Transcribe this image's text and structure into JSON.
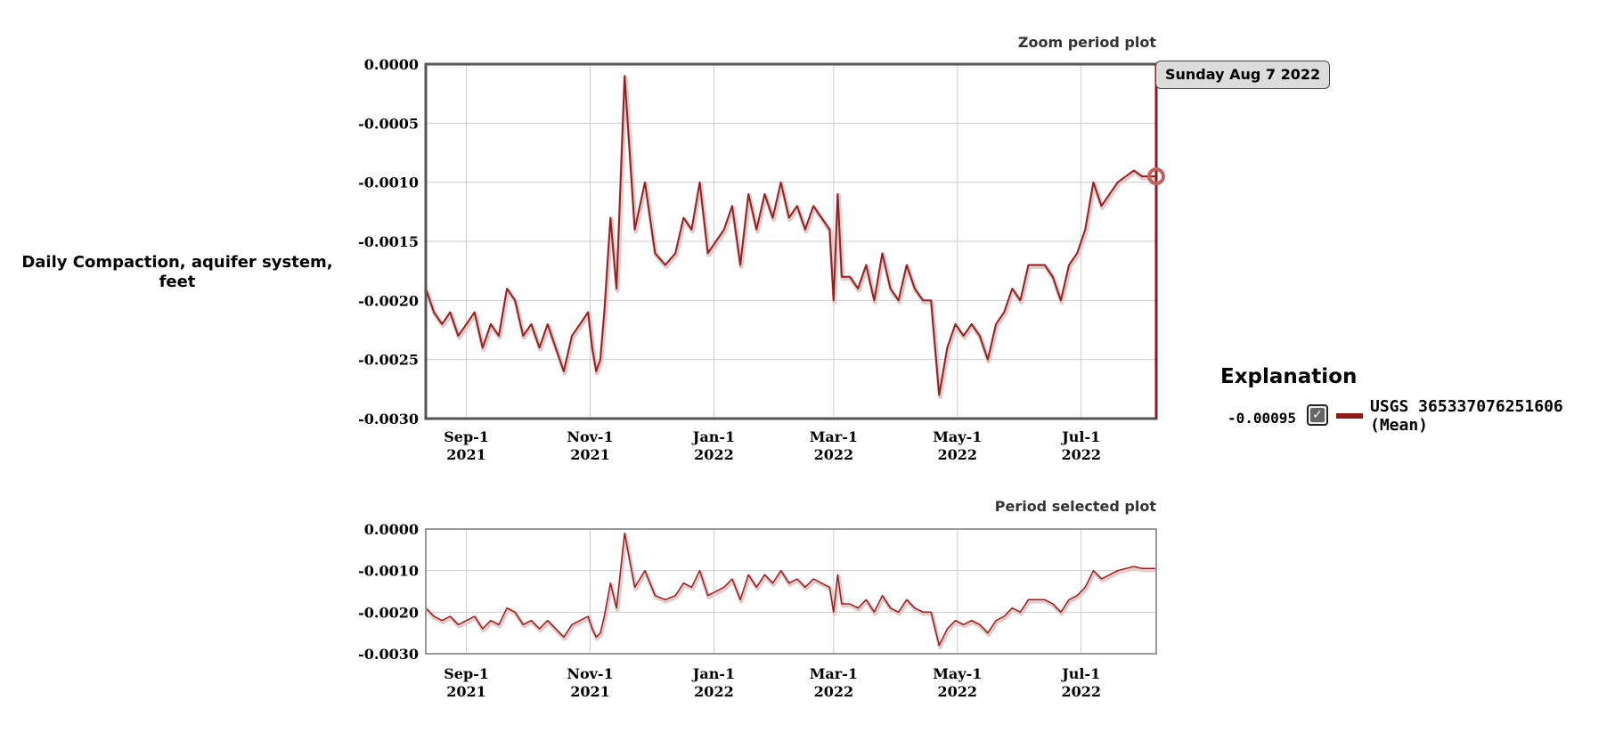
{
  "chart_data": [
    {
      "type": "line",
      "title": "Zoom period plot",
      "ylabel": "Daily Compaction, aquifer system, feet",
      "ylim": [
        -0.003,
        0.0
      ],
      "xlim": [
        "2021-08-12",
        "2022-08-07"
      ],
      "yticks": [
        "0.0000",
        "-0.0005",
        "-0.0010",
        "-0.0015",
        "-0.0020",
        "-0.0025",
        "-0.0030"
      ],
      "grid": true,
      "series": [
        {
          "name": "USGS 365337076251606 (Mean)",
          "color": "#8b2424",
          "x": [
            "2021-08-12",
            "2021-08-16",
            "2021-08-20",
            "2021-08-24",
            "2021-08-28",
            "2021-09-01",
            "2021-09-05",
            "2021-09-09",
            "2021-09-13",
            "2021-09-17",
            "2021-09-21",
            "2021-09-25",
            "2021-09-29",
            "2021-10-03",
            "2021-10-07",
            "2021-10-11",
            "2021-10-15",
            "2021-10-19",
            "2021-10-23",
            "2021-10-27",
            "2021-10-31",
            "2021-11-02",
            "2021-11-04",
            "2021-11-06",
            "2021-11-08",
            "2021-11-11",
            "2021-11-14",
            "2021-11-18",
            "2021-11-23",
            "2021-11-28",
            "2021-12-03",
            "2021-12-08",
            "2021-12-13",
            "2021-12-17",
            "2021-12-21",
            "2021-12-25",
            "2021-12-29",
            "2022-01-02",
            "2022-01-06",
            "2022-01-10",
            "2022-01-14",
            "2022-01-18",
            "2022-01-22",
            "2022-01-26",
            "2022-01-30",
            "2022-02-03",
            "2022-02-07",
            "2022-02-11",
            "2022-02-15",
            "2022-02-19",
            "2022-02-23",
            "2022-02-27",
            "2022-03-01",
            "2022-03-03",
            "2022-03-05",
            "2022-03-09",
            "2022-03-13",
            "2022-03-17",
            "2022-03-21",
            "2022-03-25",
            "2022-03-29",
            "2022-04-02",
            "2022-04-06",
            "2022-04-10",
            "2022-04-14",
            "2022-04-18",
            "2022-04-22",
            "2022-04-26",
            "2022-04-30",
            "2022-05-04",
            "2022-05-08",
            "2022-05-12",
            "2022-05-16",
            "2022-05-20",
            "2022-05-24",
            "2022-05-28",
            "2022-06-01",
            "2022-06-05",
            "2022-06-09",
            "2022-06-13",
            "2022-06-17",
            "2022-06-21",
            "2022-06-25",
            "2022-06-29",
            "2022-07-03",
            "2022-07-07",
            "2022-07-11",
            "2022-07-15",
            "2022-07-19",
            "2022-07-23",
            "2022-07-27",
            "2022-07-31",
            "2022-08-04",
            "2022-08-07"
          ],
          "values": [
            -0.0019,
            -0.0021,
            -0.0022,
            -0.0021,
            -0.0023,
            -0.0022,
            -0.0021,
            -0.0024,
            -0.0022,
            -0.0023,
            -0.0019,
            -0.002,
            -0.0023,
            -0.0022,
            -0.0024,
            -0.0022,
            -0.0024,
            -0.0026,
            -0.0023,
            -0.0022,
            -0.0021,
            -0.0024,
            -0.0026,
            -0.0025,
            -0.0021,
            -0.0013,
            -0.0019,
            -0.0001,
            -0.0014,
            -0.001,
            -0.0016,
            -0.0017,
            -0.0016,
            -0.0013,
            -0.0014,
            -0.001,
            -0.0016,
            -0.0015,
            -0.0014,
            -0.0012,
            -0.0017,
            -0.0011,
            -0.0014,
            -0.0011,
            -0.0013,
            -0.001,
            -0.0013,
            -0.0012,
            -0.0014,
            -0.0012,
            -0.0013,
            -0.0014,
            -0.002,
            -0.0011,
            -0.0018,
            -0.0018,
            -0.0019,
            -0.0017,
            -0.002,
            -0.0016,
            -0.0019,
            -0.002,
            -0.0017,
            -0.0019,
            -0.002,
            -0.002,
            -0.0028,
            -0.0024,
            -0.0022,
            -0.0023,
            -0.0022,
            -0.0023,
            -0.0025,
            -0.0022,
            -0.0021,
            -0.0019,
            -0.002,
            -0.0017,
            -0.0017,
            -0.0017,
            -0.0018,
            -0.002,
            -0.0017,
            -0.0016,
            -0.0014,
            -0.001,
            -0.0012,
            -0.0011,
            -0.001,
            -0.00095,
            -0.0009,
            -0.00095,
            -0.00095,
            -0.00095
          ]
        }
      ],
      "tooltip": "Sunday Aug 7 2022",
      "xticks": [
        {
          "date": "2021-09-01",
          "line1": "Sep-1",
          "line2": "2021"
        },
        {
          "date": "2021-11-01",
          "line1": "Nov-1",
          "line2": "2021"
        },
        {
          "date": "2022-01-01",
          "line1": "Jan-1",
          "line2": "2022"
        },
        {
          "date": "2022-03-01",
          "line1": "Mar-1",
          "line2": "2022"
        },
        {
          "date": "2022-05-01",
          "line1": "May-1",
          "line2": "2022"
        },
        {
          "date": "2022-07-01",
          "line1": "Jul-1",
          "line2": "2022"
        }
      ]
    },
    {
      "type": "line",
      "title": "Period selected plot",
      "ylim": [
        -0.003,
        0.0
      ],
      "xlim": [
        "2021-08-12",
        "2022-08-07"
      ],
      "yticks": [
        "0.0000",
        "-0.0010",
        "-0.0020",
        "-0.0030"
      ],
      "grid": true,
      "series_ref": "same as Zoom period plot",
      "xticks": [
        {
          "date": "2021-09-01",
          "line1": "Sep-1",
          "line2": "2021"
        },
        {
          "date": "2021-11-01",
          "line1": "Nov-1",
          "line2": "2021"
        },
        {
          "date": "2022-01-01",
          "line1": "Jan-1",
          "line2": "2022"
        },
        {
          "date": "2022-03-01",
          "line1": "Mar-1",
          "line2": "2022"
        },
        {
          "date": "2022-05-01",
          "line1": "May-1",
          "line2": "2022"
        },
        {
          "date": "2022-07-01",
          "line1": "Jul-1",
          "line2": "2022"
        }
      ]
    }
  ],
  "legend": {
    "title": "Explanation",
    "value": "-0.00095",
    "checked": true,
    "series_name_line1": "USGS 365337076251606",
    "series_name_line2": "(Mean)"
  },
  "ylabel_line1": "Daily Compaction, aquifer system,",
  "ylabel_line2": "feet"
}
